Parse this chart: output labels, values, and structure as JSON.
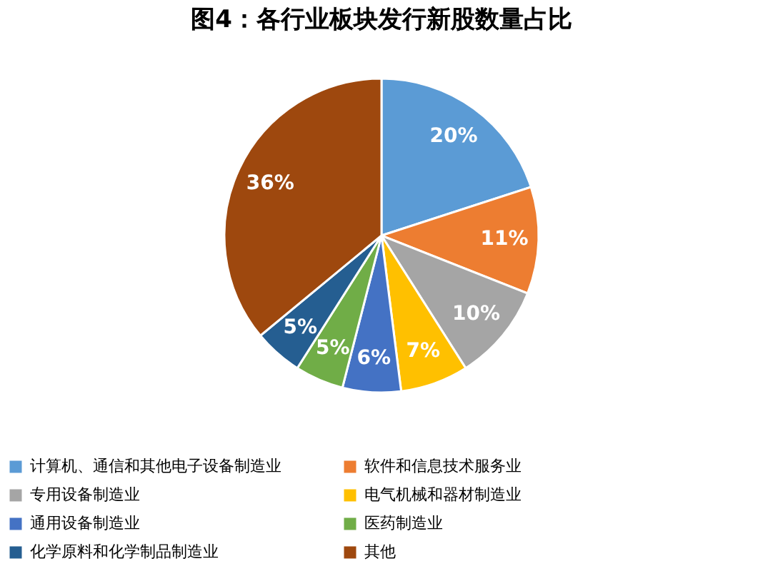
{
  "chart_data": {
    "type": "pie",
    "title": "图4：各行业板块发行新股数量占比",
    "categories": [
      "计算机、通信和其他电子设备制造业",
      "软件和信息技术服务业",
      "专用设备制造业",
      "电气机械和器材制造业",
      "通用设备制造业",
      "医药制造业",
      "化学原料和化学制品制造业",
      "其他"
    ],
    "values": [
      20,
      11,
      10,
      7,
      6,
      5,
      5,
      36
    ],
    "colors": [
      "#5b9bd5",
      "#ed7d31",
      "#a5a5a5",
      "#ffc000",
      "#4472c4",
      "#70ad47",
      "#255e91",
      "#9e480e"
    ],
    "value_labels": [
      "20%",
      "11%",
      "10%",
      "7%",
      "6%",
      "5%",
      "5%",
      "36%"
    ],
    "legend": "bottom"
  }
}
